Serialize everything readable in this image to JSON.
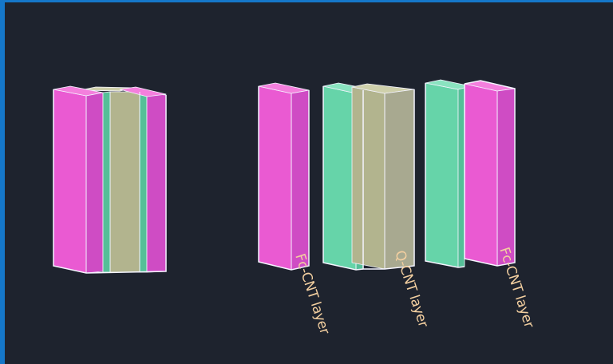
{
  "labels": {
    "left": "Fc-CNT layer",
    "middle": "Q-CNT layer",
    "right": "Fc-CNT layer"
  },
  "colors": {
    "background": "#1e232e",
    "magenta_front": "#ea5ad2",
    "magenta_side": "#cf4cc4",
    "magenta_top": "#f47fdd",
    "green_front": "#66d4a9",
    "green_side": "#55bf98",
    "green_top": "#8ae3c0",
    "beige_front": "#b2b48e",
    "beige_side": "#a8a990",
    "beige_top": "#cfd0ab",
    "edge": "#f4f4ff",
    "label": "#f3cfa0",
    "accent": "#1577c9"
  }
}
